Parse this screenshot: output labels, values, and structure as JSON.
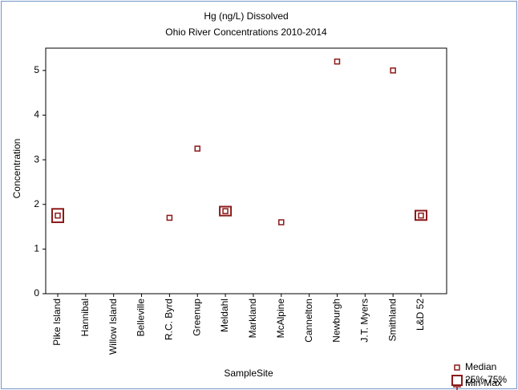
{
  "chart_data": {
    "type": "box",
    "title": "Hg (ng/L) Dissolved",
    "subtitle": "Ohio River Concentrations 2010-2014",
    "x_label": "SampleSite",
    "y_label": "Concentration",
    "categories": [
      "Pike Island",
      "Hannibal",
      "Willow Island",
      "Belleville",
      "R.C. Byrd",
      "Greenup",
      "Meldahl",
      "Markland",
      "McAlpine",
      "Cannelton",
      "Newburgh",
      "J.T. Myers",
      "Smithland",
      "L&D 52"
    ],
    "ylim": [
      0,
      5.5
    ],
    "yticks": [
      0,
      1,
      2,
      3,
      4,
      5
    ],
    "series": [
      {
        "name": "Median",
        "color": "#8b1a1a",
        "values": [
          1.75,
          null,
          null,
          null,
          1.7,
          3.25,
          1.85,
          null,
          1.6,
          null,
          5.2,
          null,
          5.0,
          1.75
        ]
      },
      {
        "name": "25%-75%",
        "color": "#8b1a1a",
        "low": [
          1.6,
          null,
          null,
          null,
          1.7,
          3.25,
          1.75,
          null,
          1.6,
          null,
          5.2,
          null,
          5.0,
          1.65
        ],
        "high": [
          1.9,
          null,
          null,
          null,
          1.7,
          3.25,
          1.95,
          null,
          1.6,
          null,
          5.2,
          null,
          5.0,
          1.86
        ]
      },
      {
        "name": "Min-Max",
        "color": "#8b1a1a",
        "low": [
          1.6,
          null,
          null,
          null,
          1.7,
          3.25,
          1.75,
          null,
          1.6,
          null,
          5.2,
          null,
          5.0,
          1.65
        ],
        "high": [
          1.9,
          null,
          null,
          null,
          1.7,
          3.25,
          1.95,
          null,
          1.6,
          null,
          5.2,
          null,
          5.0,
          1.86
        ]
      }
    ]
  }
}
